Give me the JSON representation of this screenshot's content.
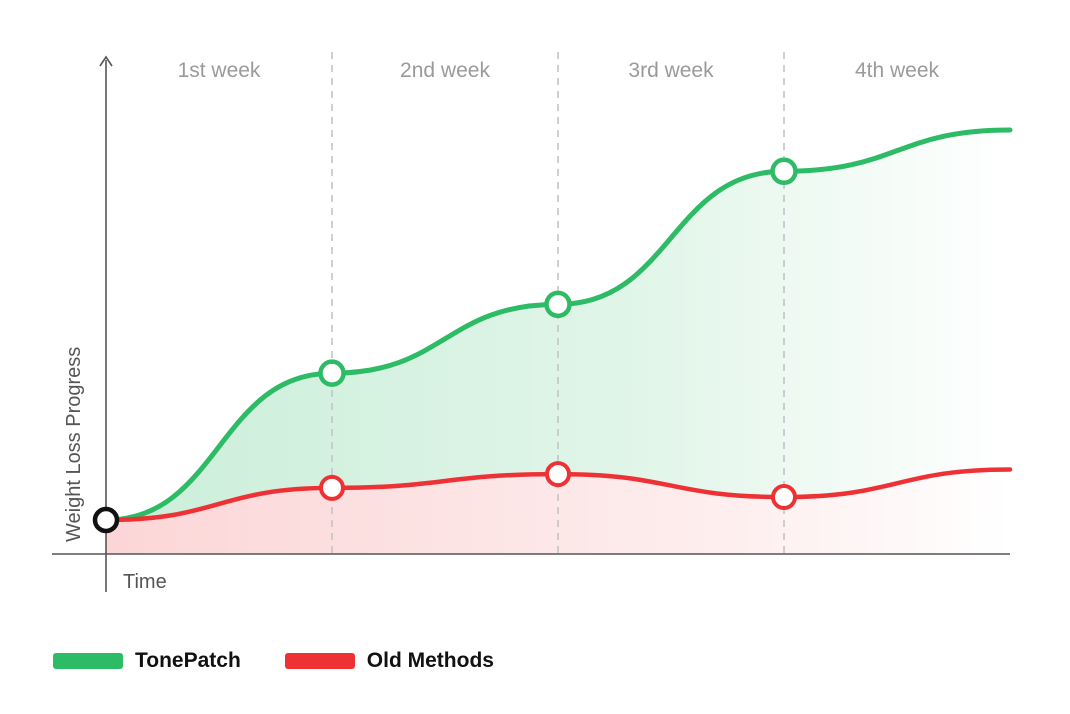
{
  "chart_data": {
    "type": "line",
    "title": "",
    "xlabel": "Time",
    "ylabel": "Weight Loss Progress",
    "bands": [
      "1st week",
      "2nd week",
      "3rd week",
      "4th week"
    ],
    "x": [
      0,
      1,
      2,
      3,
      4
    ],
    "xlim": [
      0,
      4
    ],
    "ylim": [
      0,
      100
    ],
    "grid": "dashed vertical week dividers",
    "legend_position": "bottom-left",
    "origin_marker": {
      "x": 0,
      "y": 7
    },
    "series": [
      {
        "name": "TonePatch",
        "color": "#2dbb66",
        "values": [
          7,
          39,
          54,
          83,
          92
        ]
      },
      {
        "name": "Old Methods",
        "color": "#ee3135",
        "values": [
          7,
          14,
          17,
          12,
          18
        ]
      }
    ]
  }
}
